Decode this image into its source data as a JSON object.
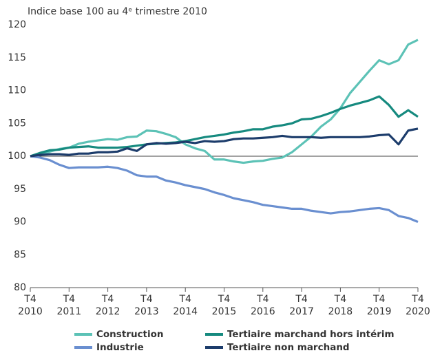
{
  "chart_data": {
    "type": "line",
    "title": "Indice base 100 au 4ᵉ trimestre 2010",
    "categories": [
      "T4 2010",
      null,
      null,
      null,
      "T4 2011",
      null,
      null,
      null,
      "T4 2012",
      null,
      null,
      null,
      "T4 2013",
      null,
      null,
      null,
      "T4 2014",
      null,
      null,
      null,
      "T4 2015",
      null,
      null,
      null,
      "T4 2016",
      null,
      null,
      null,
      "T4 2017",
      null,
      null,
      null,
      "T4 2018",
      null,
      null,
      null,
      "T4 2019",
      null,
      null,
      null,
      "T4 2020"
    ],
    "ylim": [
      80,
      120
    ],
    "yticks": [
      80,
      85,
      90,
      95,
      100,
      105,
      110,
      115,
      120
    ],
    "reference_line": 100,
    "grid": false,
    "legend": "bottom",
    "series": [
      {
        "name": "Construction",
        "color": "#5cc2b6",
        "values": [
          100,
          100.3,
          100.7,
          101.1,
          101.3,
          101.9,
          102.2,
          102.4,
          102.6,
          102.5,
          102.9,
          103.0,
          103.9,
          103.8,
          103.4,
          102.9,
          101.8,
          101.2,
          100.8,
          99.5,
          99.5,
          99.2,
          99.0,
          99.2,
          99.3,
          99.6,
          99.8,
          100.6,
          101.8,
          103.0,
          104.5,
          105.6,
          107.3,
          109.6,
          111.3,
          113.0,
          114.6,
          114.0,
          114.6,
          117.0,
          117.7
        ]
      },
      {
        "name": "Tertiaire marchand hors intérim",
        "color": "#168a7f",
        "values": [
          100,
          100.5,
          100.9,
          101.0,
          101.3,
          101.4,
          101.5,
          101.3,
          101.3,
          101.3,
          101.4,
          101.6,
          101.8,
          101.9,
          102.0,
          102.1,
          102.3,
          102.6,
          102.9,
          103.1,
          103.3,
          103.6,
          103.8,
          104.1,
          104.1,
          104.5,
          104.7,
          105.0,
          105.6,
          105.7,
          106.1,
          106.6,
          107.2,
          107.7,
          108.1,
          108.5,
          109.1,
          107.8,
          106.0,
          107.0,
          106.0
        ]
      },
      {
        "name": "Industrie",
        "color": "#6a8fd0",
        "values": [
          100,
          99.8,
          99.4,
          98.7,
          98.2,
          98.3,
          98.3,
          98.3,
          98.4,
          98.2,
          97.8,
          97.1,
          96.9,
          96.9,
          96.3,
          96.0,
          95.6,
          95.3,
          95.0,
          94.5,
          94.1,
          93.6,
          93.3,
          93.0,
          92.6,
          92.4,
          92.2,
          92.0,
          92.0,
          91.7,
          91.5,
          91.3,
          91.5,
          91.6,
          91.8,
          92.0,
          92.1,
          91.8,
          90.9,
          90.6,
          90.0
        ]
      },
      {
        "name": "Tertiaire non marchand",
        "color": "#1c3c6b",
        "values": [
          100,
          100.2,
          100.3,
          100.3,
          100.2,
          100.4,
          100.4,
          100.6,
          100.6,
          100.7,
          101.2,
          100.8,
          101.8,
          102.0,
          101.9,
          102.0,
          102.2,
          102.0,
          102.3,
          102.2,
          102.3,
          102.6,
          102.7,
          102.7,
          102.8,
          102.9,
          103.1,
          102.9,
          102.9,
          102.9,
          102.8,
          102.9,
          102.9,
          102.9,
          102.9,
          103.0,
          103.2,
          103.3,
          101.8,
          103.9,
          104.2
        ]
      }
    ]
  }
}
